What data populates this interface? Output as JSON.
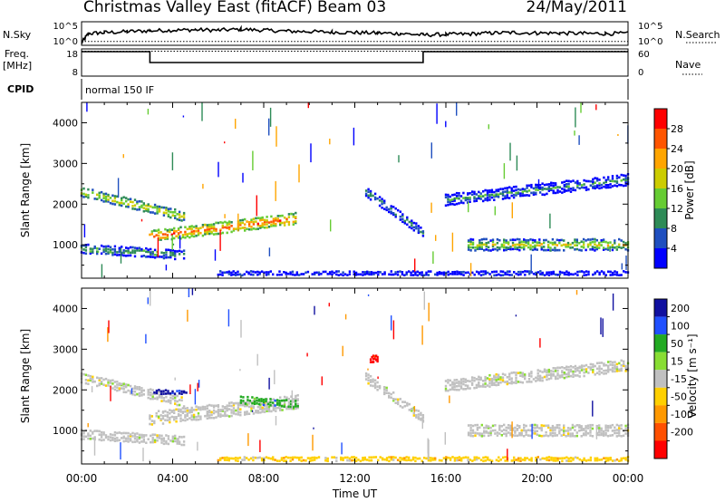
{
  "header": {
    "station": "Christmas Valley East (fitACF)",
    "beam": "Beam 03",
    "date": "24/May/2011"
  },
  "noise_panel": {
    "left_label": "N.Sky",
    "right_label": "N.Search",
    "left_ticks": [
      "10^5",
      "10^0"
    ],
    "right_ticks": [
      "10^5",
      "10^0"
    ]
  },
  "freq_panel": {
    "left_label_1": "Freq.",
    "left_label_2": "[MHz]",
    "right_label": "Nave",
    "left_ticks": [
      "18",
      "8"
    ],
    "right_ticks": [
      "60",
      "0"
    ]
  },
  "cpid_panel": {
    "label": "CPID",
    "value": "normal 150 IF"
  },
  "x_axis": {
    "label": "Time UT",
    "ticks": [
      "00:00",
      "04:00",
      "08:00",
      "12:00",
      "16:00",
      "20:00",
      "00:00"
    ]
  },
  "colors": {
    "power": [
      "#0000ff",
      "#1f4fbf",
      "#2e8b57",
      "#66cc33",
      "#cccc00",
      "#ffa500",
      "#ff5500",
      "#ff0000"
    ],
    "velocity": [
      "#1010a0",
      "#2050ff",
      "#22aa22",
      "#88dd33",
      "#c0c0c0",
      "#ffd000",
      "#ff9900",
      "#ff5000",
      "#ff0000"
    ]
  },
  "chart_data": [
    {
      "type": "line",
      "title": "N.Sky / N.Search",
      "xlabel": "Time UT",
      "ylabel": "N.Sky",
      "ylim_log10": [
        0,
        5
      ],
      "x_hours": [
        0,
        0.3,
        1,
        2,
        3,
        4,
        5,
        6,
        7,
        8,
        9,
        10,
        11,
        12,
        13,
        14,
        15,
        16,
        17,
        18,
        19,
        20,
        21,
        22,
        23,
        24
      ],
      "series": [
        {
          "name": "N.Sky",
          "values_log10": [
            0.5,
            2.5,
            2.7,
            2.9,
            3.1,
            3.2,
            3.3,
            3.2,
            3.4,
            3.2,
            3.0,
            2.9,
            2.8,
            2.7,
            2.6,
            2.5,
            2.2,
            2.3,
            2.4,
            2.6,
            2.7,
            2.6,
            2.6,
            2.5,
            2.5,
            2.5
          ]
        },
        {
          "name": "N.Search",
          "values_log10": [
            0.8,
            0.8,
            0.8,
            0.8,
            0.8,
            0.8,
            0.8,
            0.8,
            0.8,
            0.8,
            0.8,
            0.8,
            0.8,
            0.8,
            0.8,
            0.8,
            0.8,
            0.8,
            0.8,
            0.8,
            0.8,
            0.8,
            0.8,
            0.8,
            0.8,
            0.8
          ]
        }
      ]
    },
    {
      "type": "line",
      "title": "Freq. / Nave",
      "xlabel": "Time UT",
      "ylabel": "Freq. [MHz]",
      "ylim": [
        8,
        18
      ],
      "x_hours": [
        0,
        3,
        3,
        15,
        15,
        24
      ],
      "series": [
        {
          "name": "Freq.",
          "values": [
            17,
            17,
            13,
            13,
            17,
            17
          ]
        },
        {
          "name": "Nave",
          "values": [
            55,
            55,
            55,
            55,
            55,
            55
          ]
        }
      ]
    },
    {
      "type": "heatmap",
      "title": "Power",
      "xlabel": "Time UT",
      "ylabel": "Slant Range [km]",
      "xlim_hours": [
        0,
        24
      ],
      "ylim": [
        180,
        4500
      ],
      "yticks": [
        1000,
        2000,
        3000,
        4000
      ],
      "colorbar": {
        "label": "Power [dB]",
        "min": 0,
        "max": 32,
        "ticks": [
          "4",
          "8",
          "12",
          "16",
          "20",
          "24",
          "28"
        ]
      },
      "features": [
        {
          "name": "band-upper-morning",
          "t_start": 0.0,
          "t_end": 4.5,
          "range_start_km": 2300,
          "range_end_km": 1700,
          "width_km": 260,
          "power_db": 18
        },
        {
          "name": "band-core-morning",
          "t_start": 3.0,
          "t_end": 9.5,
          "range_start_km": 1200,
          "range_end_km": 1650,
          "width_km": 300,
          "power_db": 24
        },
        {
          "name": "band-lower-morning",
          "t_start": 0.0,
          "t_end": 4.5,
          "range_start_km": 900,
          "range_end_km": 750,
          "width_km": 250,
          "power_db": 12
        },
        {
          "name": "band-midday-descending",
          "t_start": 12.5,
          "t_end": 15.0,
          "range_start_km": 2300,
          "range_end_km": 1300,
          "width_km": 250,
          "power_db": 10
        },
        {
          "name": "band-evening-upper",
          "t_start": 16.0,
          "t_end": 24.0,
          "range_start_km": 2100,
          "range_end_km": 2600,
          "width_km": 300,
          "power_db": 9
        },
        {
          "name": "band-evening-lower",
          "t_start": 17.0,
          "t_end": 24.0,
          "range_start_km": 1000,
          "range_end_km": 1000,
          "width_km": 300,
          "power_db": 16
        },
        {
          "name": "ground-strip",
          "t_start": 6.0,
          "t_end": 24.0,
          "range_start_km": 300,
          "range_end_km": 300,
          "width_km": 120,
          "power_db": 8
        }
      ]
    },
    {
      "type": "heatmap",
      "title": "Velocity",
      "xlabel": "Time UT",
      "ylabel": "Slant Range [km]",
      "xlim_hours": [
        0,
        24
      ],
      "ylim": [
        180,
        4500
      ],
      "yticks": [
        1000,
        2000,
        3000,
        4000
      ],
      "colorbar": {
        "label": "Velocity [m s⁻¹]",
        "min": -250,
        "max": 250,
        "ticks": [
          "200",
          "100",
          "50",
          "15",
          "-15",
          "-50",
          "-100",
          "-200"
        ]
      },
      "features": [
        {
          "name": "band-upper-morning",
          "t_start": 0.0,
          "t_end": 4.5,
          "range_start_km": 2300,
          "range_end_km": 1700,
          "width_km": 260,
          "velocity": 0
        },
        {
          "name": "band-core-morning",
          "t_start": 3.0,
          "t_end": 9.5,
          "range_start_km": 1300,
          "range_end_km": 1700,
          "width_km": 350,
          "velocity": 5
        },
        {
          "name": "patch-positive-morning",
          "t_start": 3.2,
          "t_end": 4.6,
          "range_start_km": 1950,
          "range_end_km": 1950,
          "width_km": 120,
          "velocity": 200
        },
        {
          "name": "patch-positive-0800",
          "t_start": 7.0,
          "t_end": 9.5,
          "range_start_km": 1750,
          "range_end_km": 1650,
          "width_km": 200,
          "velocity": 60
        },
        {
          "name": "band-lower-morning",
          "t_start": 0.0,
          "t_end": 4.5,
          "range_start_km": 900,
          "range_end_km": 750,
          "width_km": 250,
          "velocity": 0
        },
        {
          "name": "band-midday-descending",
          "t_start": 12.5,
          "t_end": 15.0,
          "range_start_km": 2300,
          "range_end_km": 1300,
          "width_km": 250,
          "velocity": 0
        },
        {
          "name": "band-evening-upper",
          "t_start": 16.0,
          "t_end": 24.0,
          "range_start_km": 2100,
          "range_end_km": 2600,
          "width_km": 300,
          "velocity": 0
        },
        {
          "name": "band-evening-lower",
          "t_start": 17.0,
          "t_end": 24.0,
          "range_start_km": 1000,
          "range_end_km": 1000,
          "width_km": 300,
          "velocity": 0
        },
        {
          "name": "ground-strip",
          "t_start": 6.0,
          "t_end": 24.0,
          "range_start_km": 300,
          "range_end_km": 300,
          "width_km": 120,
          "velocity": -40
        },
        {
          "name": "patch-negative-1230",
          "t_start": 12.7,
          "t_end": 13.0,
          "range_start_km": 2750,
          "range_end_km": 2750,
          "width_km": 200,
          "velocity": -220
        }
      ]
    }
  ]
}
